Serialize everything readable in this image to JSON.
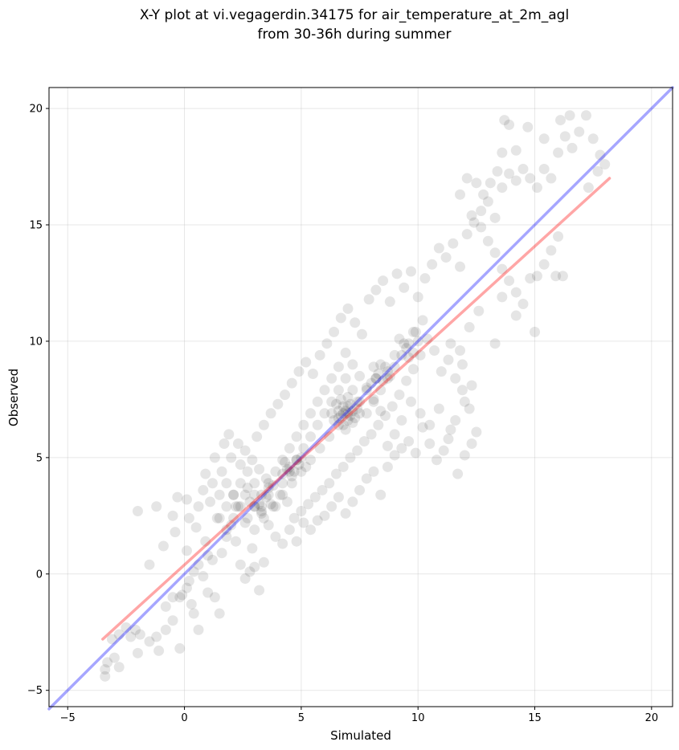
{
  "chart_data": {
    "type": "scatter",
    "title_line1": "X-Y plot at vi.vegagerdin.34175 for air_temperature_at_2m_agl",
    "title_line2": "from 30-36h during summer",
    "xlabel": "Simulated",
    "ylabel": "Observed",
    "xlim": [
      -5.8,
      20.9
    ],
    "ylim": [
      -5.7,
      20.9
    ],
    "xticks": [
      -5,
      0,
      5,
      10,
      15,
      20
    ],
    "yticks": [
      -5,
      0,
      5,
      10,
      15,
      20
    ],
    "xtick_labels": [
      "−5",
      "0",
      "5",
      "10",
      "15",
      "20"
    ],
    "ytick_labels": [
      "−5",
      "0",
      "5",
      "10",
      "15",
      "20"
    ],
    "grid": true,
    "point_color": "#000000",
    "identity_line": {
      "color": "#0000ff",
      "points": [
        [
          -5.8,
          -5.8
        ],
        [
          20.9,
          20.9
        ]
      ]
    },
    "fit_line": {
      "color": "#ff0000",
      "points": [
        [
          -3.5,
          -2.8
        ],
        [
          18.2,
          17.0
        ]
      ]
    },
    "points": [
      [
        -3.4,
        -4.4
      ],
      [
        -3.4,
        -4.1
      ],
      [
        -3.3,
        -3.8
      ],
      [
        -3.0,
        -3.6
      ],
      [
        -2.8,
        -4.0
      ],
      [
        -3.1,
        -2.8
      ],
      [
        -2.8,
        -2.6
      ],
      [
        -2.5,
        -2.3
      ],
      [
        -2.3,
        -2.7
      ],
      [
        -2.0,
        -3.4
      ],
      [
        -1.9,
        -2.6
      ],
      [
        -2.1,
        -2.4
      ],
      [
        -1.5,
        -2.9
      ],
      [
        -1.2,
        -2.7
      ],
      [
        -1.1,
        -3.3
      ],
      [
        -0.8,
        -2.4
      ],
      [
        -0.5,
        -2.0
      ],
      [
        -0.2,
        -3.2
      ],
      [
        -0.8,
        -1.4
      ],
      [
        -0.5,
        -1.0
      ],
      [
        -0.2,
        -1.0
      ],
      [
        -0.1,
        -0.9
      ],
      [
        0.1,
        -0.6
      ],
      [
        0.3,
        -1.3
      ],
      [
        0.4,
        -1.7
      ],
      [
        0.6,
        -2.4
      ],
      [
        0.2,
        -0.3
      ],
      [
        0.4,
        0.1
      ],
      [
        0.6,
        0.4
      ],
      [
        0.8,
        -0.1
      ],
      [
        1.0,
        -0.8
      ],
      [
        1.3,
        -1.0
      ],
      [
        1.5,
        -1.7
      ],
      [
        1.2,
        0.6
      ],
      [
        1.0,
        0.8
      ],
      [
        0.9,
        1.4
      ],
      [
        0.5,
        2.0
      ],
      [
        0.2,
        2.4
      ],
      [
        0.1,
        3.2
      ],
      [
        -0.3,
        3.3
      ],
      [
        -0.5,
        2.5
      ],
      [
        -0.9,
        1.2
      ],
      [
        -1.5,
        0.4
      ],
      [
        -2.0,
        2.7
      ],
      [
        -1.2,
        2.9
      ],
      [
        -0.4,
        1.8
      ],
      [
        0.1,
        1.0
      ],
      [
        1.6,
        0.9
      ],
      [
        1.8,
        1.6
      ],
      [
        2.0,
        2.1
      ],
      [
        2.2,
        1.4
      ],
      [
        2.4,
        0.4
      ],
      [
        2.6,
        -0.2
      ],
      [
        2.8,
        0.1
      ],
      [
        3.0,
        0.3
      ],
      [
        3.2,
        -0.7
      ],
      [
        3.4,
        0.5
      ],
      [
        2.9,
        1.1
      ],
      [
        2.6,
        2.2
      ],
      [
        2.3,
        2.9
      ],
      [
        2.1,
        3.4
      ],
      [
        1.8,
        3.9
      ],
      [
        1.6,
        4.4
      ],
      [
        1.3,
        5.0
      ],
      [
        1.1,
        3.1
      ],
      [
        0.8,
        3.6
      ],
      [
        0.6,
        2.9
      ],
      [
        0.9,
        4.3
      ],
      [
        1.4,
        2.4
      ],
      [
        1.7,
        5.6
      ],
      [
        1.9,
        6.0
      ],
      [
        2.4,
        4.7
      ],
      [
        2.7,
        3.7
      ],
      [
        3.0,
        2.9
      ],
      [
        3.3,
        2.6
      ],
      [
        3.6,
        2.1
      ],
      [
        3.9,
        1.6
      ],
      [
        4.2,
        1.3
      ],
      [
        4.5,
        1.9
      ],
      [
        4.8,
        1.4
      ],
      [
        5.1,
        2.2
      ],
      [
        5.4,
        1.9
      ],
      [
        5.7,
        2.3
      ],
      [
        6.0,
        2.5
      ],
      [
        6.3,
        2.9
      ],
      [
        6.6,
        3.3
      ],
      [
        6.9,
        2.6
      ],
      [
        7.2,
        3.1
      ],
      [
        7.5,
        3.6
      ],
      [
        7.8,
        4.1
      ],
      [
        8.1,
        4.4
      ],
      [
        8.4,
        3.4
      ],
      [
        8.7,
        4.6
      ],
      [
        9.0,
        5.1
      ],
      [
        9.3,
        5.4
      ],
      [
        9.6,
        5.7
      ],
      [
        9.9,
        5.2
      ],
      [
        10.2,
        6.3
      ],
      [
        10.5,
        5.6
      ],
      [
        10.8,
        4.9
      ],
      [
        11.1,
        5.3
      ],
      [
        11.4,
        6.2
      ],
      [
        11.7,
        4.3
      ],
      [
        12.0,
        5.1
      ],
      [
        12.3,
        5.6
      ],
      [
        12.5,
        6.1
      ],
      [
        12.2,
        7.1
      ],
      [
        11.9,
        7.9
      ],
      [
        11.6,
        8.4
      ],
      [
        11.3,
        9.2
      ],
      [
        11.0,
        8.7
      ],
      [
        10.7,
        9.6
      ],
      [
        10.4,
        10.1
      ],
      [
        10.1,
        9.4
      ],
      [
        9.8,
        8.8
      ],
      [
        9.5,
        8.3
      ],
      [
        9.2,
        7.7
      ],
      [
        8.9,
        7.2
      ],
      [
        8.6,
        6.8
      ],
      [
        8.3,
        6.4
      ],
      [
        8.0,
        6.0
      ],
      [
        7.7,
        5.7
      ],
      [
        7.4,
        5.3
      ],
      [
        7.1,
        5.0
      ],
      [
        6.8,
        4.6
      ],
      [
        6.5,
        4.3
      ],
      [
        6.2,
        3.9
      ],
      [
        5.9,
        3.6
      ],
      [
        5.6,
        3.3
      ],
      [
        5.3,
        3.0
      ],
      [
        5.0,
        2.7
      ],
      [
        4.7,
        2.4
      ],
      [
        4.4,
        3.1
      ],
      [
        4.1,
        3.4
      ],
      [
        3.8,
        3.8
      ],
      [
        3.5,
        4.1
      ],
      [
        3.2,
        4.5
      ],
      [
        2.9,
        4.9
      ],
      [
        2.6,
        5.3
      ],
      [
        2.3,
        5.6
      ],
      [
        2.0,
        5.0
      ],
      [
        3.1,
        5.9
      ],
      [
        3.4,
        6.4
      ],
      [
        3.7,
        6.9
      ],
      [
        4.0,
        7.3
      ],
      [
        4.3,
        7.7
      ],
      [
        4.6,
        8.2
      ],
      [
        4.9,
        8.7
      ],
      [
        5.2,
        9.1
      ],
      [
        5.5,
        8.6
      ],
      [
        5.8,
        9.4
      ],
      [
        6.1,
        9.9
      ],
      [
        6.4,
        10.4
      ],
      [
        6.7,
        11.0
      ],
      [
        7.0,
        11.4
      ],
      [
        7.3,
        10.8
      ],
      [
        7.6,
        10.3
      ],
      [
        7.9,
        11.8
      ],
      [
        8.2,
        12.2
      ],
      [
        8.5,
        12.6
      ],
      [
        8.8,
        11.7
      ],
      [
        9.1,
        12.9
      ],
      [
        9.4,
        12.3
      ],
      [
        9.7,
        13.0
      ],
      [
        10.0,
        11.9
      ],
      [
        10.3,
        12.7
      ],
      [
        10.6,
        13.3
      ],
      [
        10.9,
        14.0
      ],
      [
        11.2,
        13.6
      ],
      [
        11.5,
        14.2
      ],
      [
        11.8,
        13.2
      ],
      [
        12.1,
        14.6
      ],
      [
        12.4,
        15.1
      ],
      [
        12.7,
        15.6
      ],
      [
        13.0,
        16.0
      ],
      [
        13.3,
        15.3
      ],
      [
        13.6,
        16.6
      ],
      [
        13.9,
        17.2
      ],
      [
        14.2,
        16.9
      ],
      [
        14.5,
        17.4
      ],
      [
        14.8,
        17.0
      ],
      [
        15.1,
        16.6
      ],
      [
        15.4,
        17.4
      ],
      [
        15.7,
        17.0
      ],
      [
        16.0,
        18.1
      ],
      [
        16.3,
        18.8
      ],
      [
        16.6,
        18.3
      ],
      [
        16.9,
        19.0
      ],
      [
        17.2,
        19.7
      ],
      [
        17.5,
        18.7
      ],
      [
        17.8,
        18.0
      ],
      [
        18.0,
        17.6
      ],
      [
        17.7,
        17.3
      ],
      [
        17.3,
        16.6
      ],
      [
        16.5,
        19.7
      ],
      [
        16.1,
        19.5
      ],
      [
        15.4,
        18.7
      ],
      [
        14.7,
        19.2
      ],
      [
        14.2,
        18.2
      ],
      [
        13.9,
        19.3
      ],
      [
        13.7,
        19.5
      ],
      [
        13.6,
        18.1
      ],
      [
        13.4,
        17.3
      ],
      [
        13.1,
        16.8
      ],
      [
        12.8,
        16.3
      ],
      [
        12.5,
        16.8
      ],
      [
        12.1,
        17.0
      ],
      [
        11.8,
        16.3
      ],
      [
        12.3,
        15.4
      ],
      [
        12.7,
        14.9
      ],
      [
        13.0,
        14.3
      ],
      [
        13.3,
        13.8
      ],
      [
        13.6,
        13.1
      ],
      [
        13.9,
        12.6
      ],
      [
        14.2,
        12.1
      ],
      [
        14.5,
        11.6
      ],
      [
        14.8,
        12.7
      ],
      [
        15.1,
        12.8
      ],
      [
        15.4,
        13.3
      ],
      [
        15.7,
        13.9
      ],
      [
        16.0,
        14.5
      ],
      [
        16.2,
        12.8
      ],
      [
        15.9,
        12.8
      ],
      [
        15.0,
        10.4
      ],
      [
        14.2,
        11.1
      ],
      [
        13.6,
        11.9
      ],
      [
        13.3,
        9.9
      ],
      [
        12.6,
        11.3
      ],
      [
        12.2,
        10.6
      ],
      [
        11.8,
        9.6
      ],
      [
        11.4,
        9.9
      ],
      [
        11.9,
        9.0
      ],
      [
        12.3,
        8.1
      ],
      [
        12.0,
        7.4
      ],
      [
        11.6,
        6.6
      ],
      [
        11.3,
        5.8
      ],
      [
        10.9,
        7.1
      ],
      [
        10.5,
        6.4
      ],
      [
        10.1,
        6.9
      ],
      [
        9.7,
        7.4
      ],
      [
        9.3,
        6.6
      ],
      [
        9.0,
        6.0
      ],
      [
        8.7,
        5.5
      ],
      [
        8.4,
        7.0
      ],
      [
        8.1,
        7.5
      ],
      [
        7.8,
        8.0
      ],
      [
        7.5,
        8.5
      ],
      [
        7.2,
        9.0
      ],
      [
        6.9,
        9.5
      ],
      [
        6.6,
        8.9
      ],
      [
        6.3,
        8.4
      ],
      [
        6.0,
        7.9
      ],
      [
        5.7,
        7.4
      ],
      [
        5.4,
        6.9
      ],
      [
        5.1,
        6.4
      ],
      [
        4.8,
        5.9
      ],
      [
        4.5,
        5.4
      ],
      [
        4.2,
        4.9
      ],
      [
        3.9,
        4.4
      ],
      [
        3.6,
        3.9
      ],
      [
        3.3,
        3.4
      ],
      [
        3.0,
        3.9
      ],
      [
        2.7,
        4.4
      ],
      [
        2.4,
        3.9
      ],
      [
        2.1,
        3.4
      ],
      [
        1.8,
        2.9
      ],
      [
        1.5,
        3.4
      ],
      [
        1.2,
        3.9
      ],
      [
        1.5,
        2.4
      ],
      [
        1.8,
        1.9
      ],
      [
        2.1,
        2.4
      ],
      [
        2.4,
        2.9
      ],
      [
        2.7,
        2.4
      ],
      [
        3.0,
        1.9
      ],
      [
        3.3,
        2.9
      ],
      [
        3.6,
        3.4
      ],
      [
        3.9,
        2.9
      ],
      [
        4.2,
        3.9
      ],
      [
        4.5,
        4.4
      ],
      [
        4.8,
        4.9
      ],
      [
        5.1,
        5.4
      ],
      [
        5.4,
        5.9
      ],
      [
        5.7,
        6.4
      ],
      [
        6.0,
        6.9
      ],
      [
        6.3,
        7.4
      ],
      [
        6.6,
        7.9
      ],
      [
        6.9,
        8.4
      ],
      [
        7.2,
        7.9
      ],
      [
        7.5,
        7.4
      ],
      [
        7.8,
        6.9
      ],
      [
        8.1,
        7.4
      ],
      [
        8.4,
        7.9
      ],
      [
        8.7,
        8.4
      ],
      [
        9.0,
        8.9
      ],
      [
        9.3,
        9.4
      ],
      [
        9.6,
        9.9
      ],
      [
        9.9,
        10.4
      ],
      [
        10.2,
        10.9
      ],
      [
        9.8,
        10.4
      ],
      [
        9.4,
        9.9
      ],
      [
        9.0,
        9.4
      ],
      [
        8.6,
        8.9
      ],
      [
        8.2,
        8.4
      ],
      [
        7.8,
        7.9
      ],
      [
        7.4,
        7.4
      ],
      [
        7.0,
        6.9
      ],
      [
        6.6,
        6.4
      ],
      [
        6.2,
        5.9
      ],
      [
        5.8,
        5.4
      ],
      [
        5.4,
        4.9
      ],
      [
        5.0,
        4.4
      ],
      [
        4.6,
        3.9
      ],
      [
        4.2,
        3.4
      ],
      [
        3.8,
        2.9
      ],
      [
        3.4,
        2.4
      ],
      [
        3.0,
        2.9
      ],
      [
        2.6,
        3.4
      ],
      [
        2.2,
        2.9
      ],
      [
        6.8,
        6.9
      ],
      [
        7.0,
        7.2
      ],
      [
        6.6,
        7.0
      ],
      [
        7.2,
        6.5
      ],
      [
        6.9,
        6.2
      ],
      [
        6.4,
        6.6
      ],
      [
        7.4,
        7.1
      ],
      [
        6.7,
        7.5
      ],
      [
        7.1,
        6.8
      ],
      [
        6.5,
        7.3
      ],
      [
        7.3,
        6.7
      ],
      [
        6.8,
        6.4
      ],
      [
        7.0,
        7.6
      ],
      [
        6.3,
        6.9
      ],
      [
        7.5,
        6.9
      ],
      [
        6.7,
        6.8
      ],
      [
        6.9,
        7.0
      ],
      [
        7.1,
        7.3
      ],
      [
        6.6,
        6.7
      ],
      [
        7.2,
        7.0
      ],
      [
        6.8,
        7.2
      ],
      [
        7.0,
        6.6
      ],
      [
        4.5,
        4.6
      ],
      [
        4.7,
        4.4
      ],
      [
        4.3,
        4.8
      ],
      [
        4.9,
        4.7
      ],
      [
        4.6,
        4.2
      ],
      [
        4.4,
        4.5
      ],
      [
        5.0,
        5.0
      ],
      [
        4.2,
        4.3
      ],
      [
        4.8,
        4.9
      ],
      [
        5.2,
        4.6
      ],
      [
        8.3,
        8.6
      ],
      [
        8.5,
        8.3
      ],
      [
        8.1,
        8.9
      ],
      [
        8.7,
        8.7
      ],
      [
        8.4,
        9.0
      ],
      [
        8.0,
        8.2
      ],
      [
        8.8,
        8.5
      ],
      [
        8.2,
        8.4
      ],
      [
        3.2,
        3.0
      ],
      [
        3.5,
        3.3
      ],
      [
        3.0,
        3.4
      ],
      [
        3.7,
        3.0
      ],
      [
        3.3,
        2.7
      ],
      [
        2.8,
        3.1
      ],
      [
        3.6,
        3.7
      ],
      [
        9.5,
        9.7
      ],
      [
        9.8,
        9.5
      ],
      [
        9.2,
        10.1
      ],
      [
        10.0,
        10.0
      ],
      [
        9.6,
        9.3
      ]
    ]
  }
}
